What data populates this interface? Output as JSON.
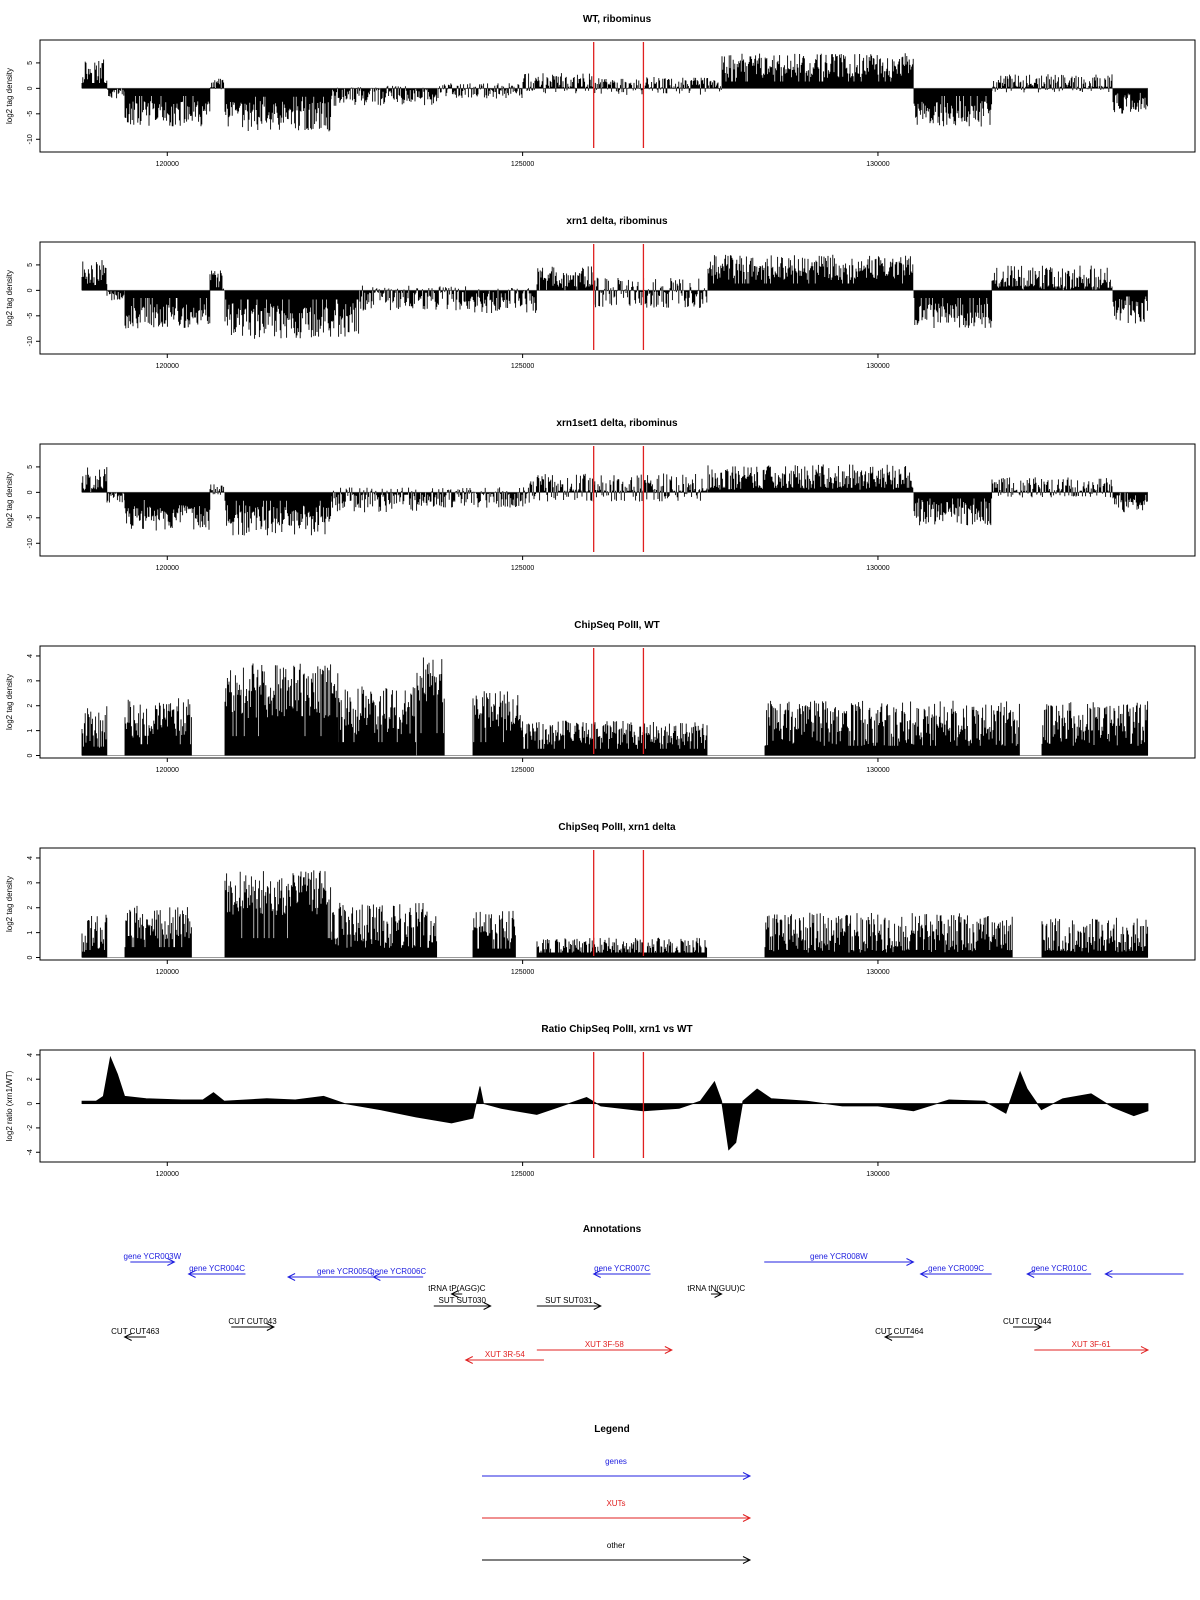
{
  "figure": {
    "x_ticks": [
      120000,
      125000,
      130000
    ],
    "x_range": [
      118800,
      133800
    ],
    "marker_positions": [
      126000,
      126700
    ],
    "colors": {
      "bars": "#000000",
      "marker": "#e02020",
      "genes": "#2020e0",
      "xuts": "#e02020",
      "other": "#000000",
      "baseline": "#9a9a9a"
    }
  },
  "chart_data": [
    {
      "type": "bar",
      "title": "WT, ribominus",
      "ylabel": "log2 tag density",
      "yticks": [
        -10,
        -5,
        0,
        5
      ],
      "ylim": [
        -12.5,
        9.5
      ],
      "segments": [
        {
          "x": [
            118800,
            119150
          ],
          "level": 3.5,
          "var": 2.5
        },
        {
          "x": [
            119150,
            119400
          ],
          "level": -1,
          "var": 1
        },
        {
          "x": [
            119400,
            120600
          ],
          "level": -5,
          "var": 2.5
        },
        {
          "x": [
            120600,
            120800
          ],
          "level": 0.8,
          "var": 1.2
        },
        {
          "x": [
            120800,
            122300
          ],
          "level": -5.5,
          "var": 3
        },
        {
          "x": [
            122300,
            123800
          ],
          "level": -1.5,
          "var": 2
        },
        {
          "x": [
            123800,
            125000
          ],
          "level": -0.5,
          "var": 1.5
        },
        {
          "x": [
            125000,
            126000
          ],
          "level": 1,
          "var": 2
        },
        {
          "x": [
            126000,
            127800
          ],
          "level": 0.5,
          "var": 1.8
        },
        {
          "x": [
            127800,
            130500
          ],
          "level": 4.5,
          "var": 2.5
        },
        {
          "x": [
            130500,
            131600
          ],
          "level": -5,
          "var": 2.5
        },
        {
          "x": [
            131600,
            133300
          ],
          "level": 1,
          "var": 1.8
        },
        {
          "x": [
            133300,
            133800
          ],
          "level": -3,
          "var": 2
        }
      ]
    },
    {
      "type": "bar",
      "title": "xrn1 delta, ribominus",
      "ylabel": "log2 tag density",
      "yticks": [
        -10,
        -5,
        0,
        5
      ],
      "ylim": [
        -12.5,
        9.5
      ],
      "segments": [
        {
          "x": [
            118800,
            119150
          ],
          "level": 3.5,
          "var": 2.5
        },
        {
          "x": [
            119150,
            119400
          ],
          "level": -1,
          "var": 1
        },
        {
          "x": [
            119400,
            120600
          ],
          "level": -5,
          "var": 2.5
        },
        {
          "x": [
            120600,
            120800
          ],
          "level": 2,
          "var": 2
        },
        {
          "x": [
            120800,
            122700
          ],
          "level": -6,
          "var": 3.5
        },
        {
          "x": [
            122700,
            124200
          ],
          "level": -1.5,
          "var": 2.5
        },
        {
          "x": [
            124200,
            125200
          ],
          "level": -2,
          "var": 2.5
        },
        {
          "x": [
            125200,
            126000
          ],
          "level": 2.5,
          "var": 2.5
        },
        {
          "x": [
            126000,
            127600
          ],
          "level": -0.5,
          "var": 3
        },
        {
          "x": [
            127600,
            130500
          ],
          "level": 4.5,
          "var": 2.5
        },
        {
          "x": [
            130500,
            131600
          ],
          "level": -5,
          "var": 2.5
        },
        {
          "x": [
            131600,
            133300
          ],
          "level": 2.5,
          "var": 2.5
        },
        {
          "x": [
            133300,
            133800
          ],
          "level": -4,
          "var": 2.5
        }
      ]
    },
    {
      "type": "bar",
      "title": "xrn1set1 delta, ribominus",
      "ylabel": "log2 tag density",
      "yticks": [
        -10,
        -5,
        0,
        5
      ],
      "ylim": [
        -12.5,
        9.5
      ],
      "segments": [
        {
          "x": [
            118800,
            119150
          ],
          "level": 2.5,
          "var": 2.5
        },
        {
          "x": [
            119150,
            119400
          ],
          "level": -1,
          "var": 1
        },
        {
          "x": [
            119400,
            120600
          ],
          "level": -5,
          "var": 2.5
        },
        {
          "x": [
            120600,
            120800
          ],
          "level": 1,
          "var": 1.5
        },
        {
          "x": [
            120800,
            122300
          ],
          "level": -5.5,
          "var": 3
        },
        {
          "x": [
            122300,
            123800
          ],
          "level": -1.5,
          "var": 2.5
        },
        {
          "x": [
            123800,
            125100
          ],
          "level": -1,
          "var": 2
        },
        {
          "x": [
            125100,
            127600
          ],
          "level": 1,
          "var": 2.8
        },
        {
          "x": [
            127600,
            130500
          ],
          "level": 3,
          "var": 2.5
        },
        {
          "x": [
            130500,
            131600
          ],
          "level": -4,
          "var": 2.5
        },
        {
          "x": [
            131600,
            133300
          ],
          "level": 1,
          "var": 2
        },
        {
          "x": [
            133300,
            133800
          ],
          "level": -2,
          "var": 2
        }
      ]
    },
    {
      "type": "bar",
      "title": "ChipSeq PolII, WT",
      "ylabel": "log2 tag density",
      "yticks": [
        0,
        1,
        2,
        3,
        4
      ],
      "ylim": [
        -0.1,
        4.4
      ],
      "segments": [
        {
          "x": [
            118800,
            119150
          ],
          "level": 1.2,
          "var": 0.9
        },
        {
          "x": [
            119400,
            120350
          ],
          "level": 1.5,
          "var": 0.8
        },
        {
          "x": [
            120800,
            122400
          ],
          "level": 2.6,
          "var": 1.1
        },
        {
          "x": [
            122400,
            123500
          ],
          "level": 1.8,
          "var": 1
        },
        {
          "x": [
            123500,
            123900
          ],
          "level": 3,
          "var": 1
        },
        {
          "x": [
            124300,
            125000
          ],
          "level": 1.8,
          "var": 0.8
        },
        {
          "x": [
            125000,
            127600
          ],
          "level": 0.9,
          "var": 0.5
        },
        {
          "x": [
            128400,
            132000
          ],
          "level": 1.3,
          "var": 0.9
        },
        {
          "x": [
            132300,
            133800
          ],
          "level": 1.3,
          "var": 0.9
        }
      ]
    },
    {
      "type": "bar",
      "title": "ChipSeq PolII, xrn1 delta",
      "ylabel": "log2 tag density",
      "yticks": [
        0,
        1,
        2,
        3,
        4
      ],
      "ylim": [
        -0.1,
        4.4
      ],
      "segments": [
        {
          "x": [
            118800,
            119150
          ],
          "level": 1,
          "var": 0.8
        },
        {
          "x": [
            119400,
            120350
          ],
          "level": 1.4,
          "var": 0.7
        },
        {
          "x": [
            120800,
            122300
          ],
          "level": 2.6,
          "var": 0.9
        },
        {
          "x": [
            122300,
            123800
          ],
          "level": 1.3,
          "var": 0.9
        },
        {
          "x": [
            124300,
            124900
          ],
          "level": 1.2,
          "var": 0.7
        },
        {
          "x": [
            125200,
            127600
          ],
          "level": 0.4,
          "var": 0.4
        },
        {
          "x": [
            128400,
            131900
          ],
          "level": 1,
          "var": 0.8
        },
        {
          "x": [
            132300,
            133800
          ],
          "level": 0.9,
          "var": 0.7
        }
      ]
    },
    {
      "type": "area",
      "title": "Ratio ChipSeq PolII, xrn1 vs WT",
      "ylabel": "log2 ratio (xrn1/WT)",
      "yticks": [
        -4,
        -2,
        0,
        2,
        4
      ],
      "ylim": [
        -4.8,
        4.4
      ],
      "points": [
        [
          118800,
          0.2
        ],
        [
          119000,
          0.2
        ],
        [
          119100,
          0.6
        ],
        [
          119200,
          3.8
        ],
        [
          119300,
          2.4
        ],
        [
          119400,
          0.6
        ],
        [
          119700,
          0.4
        ],
        [
          120200,
          0.3
        ],
        [
          120500,
          0.3
        ],
        [
          120650,
          0.9
        ],
        [
          120800,
          0.2
        ],
        [
          121400,
          0.4
        ],
        [
          121800,
          0.3
        ],
        [
          122200,
          0.6
        ],
        [
          122500,
          0
        ],
        [
          123000,
          -0.5
        ],
        [
          123500,
          -1.1
        ],
        [
          124000,
          -1.6
        ],
        [
          124300,
          -1.2
        ],
        [
          124400,
          1.4
        ],
        [
          124450,
          0
        ],
        [
          124700,
          -0.4
        ],
        [
          125200,
          -0.9
        ],
        [
          125500,
          -0.3
        ],
        [
          125900,
          0.5
        ],
        [
          126100,
          -0.2
        ],
        [
          126700,
          -0.6
        ],
        [
          127200,
          -0.4
        ],
        [
          127500,
          0.2
        ],
        [
          127700,
          1.8
        ],
        [
          127800,
          0.2
        ],
        [
          127900,
          -3.8
        ],
        [
          128000,
          -3.2
        ],
        [
          128100,
          0.2
        ],
        [
          128300,
          1.2
        ],
        [
          128500,
          0.4
        ],
        [
          129000,
          0.2
        ],
        [
          129500,
          -0.2
        ],
        [
          130000,
          -0.2
        ],
        [
          130500,
          -0.6
        ],
        [
          131000,
          0.3
        ],
        [
          131500,
          0.2
        ],
        [
          131800,
          -0.8
        ],
        [
          132000,
          2.6
        ],
        [
          132100,
          1.2
        ],
        [
          132300,
          -0.5
        ],
        [
          132600,
          0.4
        ],
        [
          133000,
          0.8
        ],
        [
          133300,
          -0.3
        ],
        [
          133600,
          -1
        ],
        [
          133800,
          -0.6
        ]
      ]
    }
  ],
  "annotations": {
    "title": "Annotations",
    "items": [
      {
        "label": "gene YCR003W",
        "x1": 119480,
        "x2": 120100,
        "dir": "right",
        "row": 0,
        "color": "genes"
      },
      {
        "label": "gene YCR004C",
        "x1": 120300,
        "x2": 121100,
        "dir": "left",
        "row": 1,
        "color": "genes"
      },
      {
        "label": "gene YCR005C",
        "x1": 121700,
        "x2": 123300,
        "dir": "left",
        "row": 2,
        "color": "genes"
      },
      {
        "label": "gene YCR006C",
        "x1": 122900,
        "x2": 123600,
        "dir": "left",
        "row": 2,
        "color": "genes"
      },
      {
        "label": "tRNA tP(AGG)C",
        "x1": 124000,
        "x2": 124150,
        "dir": "left",
        "row": 3,
        "color": "other"
      },
      {
        "label": "SUT SUT030",
        "x1": 123750,
        "x2": 124550,
        "dir": "right",
        "row": 4,
        "color": "other"
      },
      {
        "label": "SUT SUT031",
        "x1": 125200,
        "x2": 126100,
        "dir": "right",
        "row": 4,
        "color": "other"
      },
      {
        "label": "gene YCR007C",
        "x1": 126000,
        "x2": 126800,
        "dir": "left",
        "row": 1,
        "color": "genes"
      },
      {
        "label": "tRNA tN(GUU)C",
        "x1": 127650,
        "x2": 127800,
        "dir": "right",
        "row": 3,
        "color": "other"
      },
      {
        "label": "gene YCR008W",
        "x1": 128400,
        "x2": 130500,
        "dir": "right",
        "row": 0,
        "color": "genes"
      },
      {
        "label": "gene YCR009C",
        "x1": 130600,
        "x2": 131600,
        "dir": "left",
        "row": 1,
        "color": "genes"
      },
      {
        "label": "gene YCR010C",
        "x1": 132100,
        "x2": 133000,
        "dir": "left",
        "row": 1,
        "color": "genes"
      },
      {
        "label": "",
        "x1": 133200,
        "x2": 134300,
        "dir": "left",
        "row": 1,
        "color": "genes"
      },
      {
        "label": "CUT CUT463",
        "x1": 119400,
        "x2": 119700,
        "dir": "left",
        "row": 6,
        "color": "other"
      },
      {
        "label": "CUT CUT043",
        "x1": 120900,
        "x2": 121500,
        "dir": "right",
        "row": 5,
        "color": "other"
      },
      {
        "label": "CUT CUT464",
        "x1": 130100,
        "x2": 130500,
        "dir": "left",
        "row": 6,
        "color": "other"
      },
      {
        "label": "CUT CUT044",
        "x1": 131900,
        "x2": 132300,
        "dir": "right",
        "row": 5,
        "color": "other"
      },
      {
        "label": "XUT 3R-54",
        "x1": 124200,
        "x2": 125300,
        "dir": "left",
        "row": 8,
        "color": "xuts"
      },
      {
        "label": "XUT 3F-58",
        "x1": 125200,
        "x2": 127100,
        "dir": "right",
        "row": 7,
        "color": "xuts"
      },
      {
        "label": "XUT 3F-61",
        "x1": 132200,
        "x2": 133800,
        "dir": "right",
        "row": 7,
        "color": "xuts"
      }
    ]
  },
  "legend": {
    "title": "Legend",
    "items": [
      {
        "label": "genes",
        "color": "genes"
      },
      {
        "label": "XUTs",
        "color": "xuts"
      },
      {
        "label": "other",
        "color": "other"
      }
    ]
  }
}
